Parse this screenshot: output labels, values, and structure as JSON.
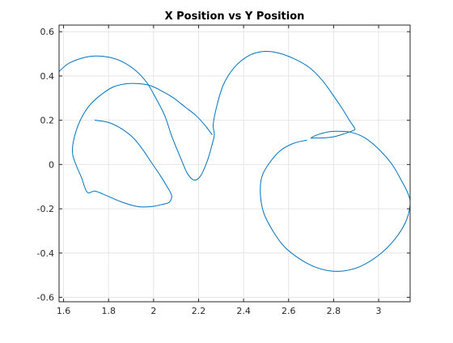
{
  "chart_data": {
    "type": "line",
    "title": "X Position vs Y Position",
    "xlabel": "",
    "ylabel": "",
    "xlim": [
      1.58,
      3.14
    ],
    "ylim": [
      -0.62,
      0.63
    ],
    "xticks": [
      1.6,
      1.8,
      2.0,
      2.2,
      2.4,
      2.6,
      2.8,
      3.0
    ],
    "yticks": [
      -0.6,
      -0.4,
      -0.2,
      0,
      0.2,
      0.4,
      0.6
    ],
    "xtick_labels": [
      "1.6",
      "1.8",
      "2",
      "2.2",
      "2.4",
      "2.6",
      "2.8",
      "3"
    ],
    "ytick_labels": [
      "-0.6",
      "-0.4",
      "-0.2",
      "0",
      "0.2",
      "0.4",
      "0.6"
    ],
    "grid": true,
    "line_color": "#0072bd",
    "axes_color": "#262626",
    "grid_color": "#e6e6e6",
    "series": [
      {
        "x": [
          1.58,
          1.62,
          1.68,
          1.74,
          1.8,
          1.86,
          1.92,
          1.97,
          2.01,
          2.05,
          2.08,
          2.12,
          2.15,
          2.18,
          2.21,
          2.24,
          2.26,
          2.27,
          2.265,
          2.28,
          2.31,
          2.36,
          2.42,
          2.48,
          2.55,
          2.62,
          2.69,
          2.75,
          2.8,
          2.84,
          2.87,
          2.89,
          2.895,
          2.89,
          2.85,
          2.8,
          2.75,
          2.72,
          2.7,
          2.73,
          2.78,
          2.83,
          2.88,
          2.94,
          3.0,
          3.06,
          3.1,
          3.13,
          3.14,
          3.12,
          3.07,
          3.0,
          2.92,
          2.85,
          2.78,
          2.71,
          2.64,
          2.58,
          2.53,
          2.49,
          2.475,
          2.48,
          2.51,
          2.56,
          2.62,
          2.68
        ],
        "y": [
          0.42,
          0.455,
          0.48,
          0.49,
          0.485,
          0.465,
          0.425,
          0.37,
          0.3,
          0.22,
          0.13,
          0.03,
          -0.04,
          -0.07,
          -0.05,
          0.02,
          0.09,
          0.135,
          0.18,
          0.26,
          0.36,
          0.44,
          0.49,
          0.51,
          0.505,
          0.48,
          0.44,
          0.38,
          0.31,
          0.25,
          0.2,
          0.17,
          0.16,
          0.155,
          0.14,
          0.125,
          0.12,
          0.12,
          0.12,
          0.135,
          0.148,
          0.15,
          0.145,
          0.12,
          0.07,
          0.0,
          -0.07,
          -0.13,
          -0.18,
          -0.26,
          -0.34,
          -0.41,
          -0.46,
          -0.48,
          -0.48,
          -0.46,
          -0.42,
          -0.37,
          -0.3,
          -0.22,
          -0.14,
          -0.06,
          0.0,
          0.06,
          0.095,
          0.11
        ]
      },
      {
        "x": [
          1.74,
          1.8,
          1.86,
          1.91,
          1.95,
          1.99,
          2.03,
          2.06,
          2.08,
          2.07,
          2.04,
          1.99,
          1.93,
          1.86,
          1.79,
          1.74,
          1.705,
          1.68,
          1.655,
          1.64,
          1.645,
          1.67,
          1.71,
          1.76,
          1.82,
          1.88,
          1.94,
          1.99,
          2.04,
          2.09,
          2.14,
          2.19,
          2.23,
          2.26
        ],
        "y": [
          0.2,
          0.19,
          0.16,
          0.12,
          0.07,
          0.01,
          -0.05,
          -0.1,
          -0.14,
          -0.17,
          -0.18,
          -0.19,
          -0.19,
          -0.17,
          -0.14,
          -0.12,
          -0.125,
          -0.06,
          0.0,
          0.05,
          0.11,
          0.19,
          0.26,
          0.31,
          0.35,
          0.365,
          0.365,
          0.355,
          0.33,
          0.3,
          0.26,
          0.22,
          0.175,
          0.135
        ]
      }
    ]
  }
}
